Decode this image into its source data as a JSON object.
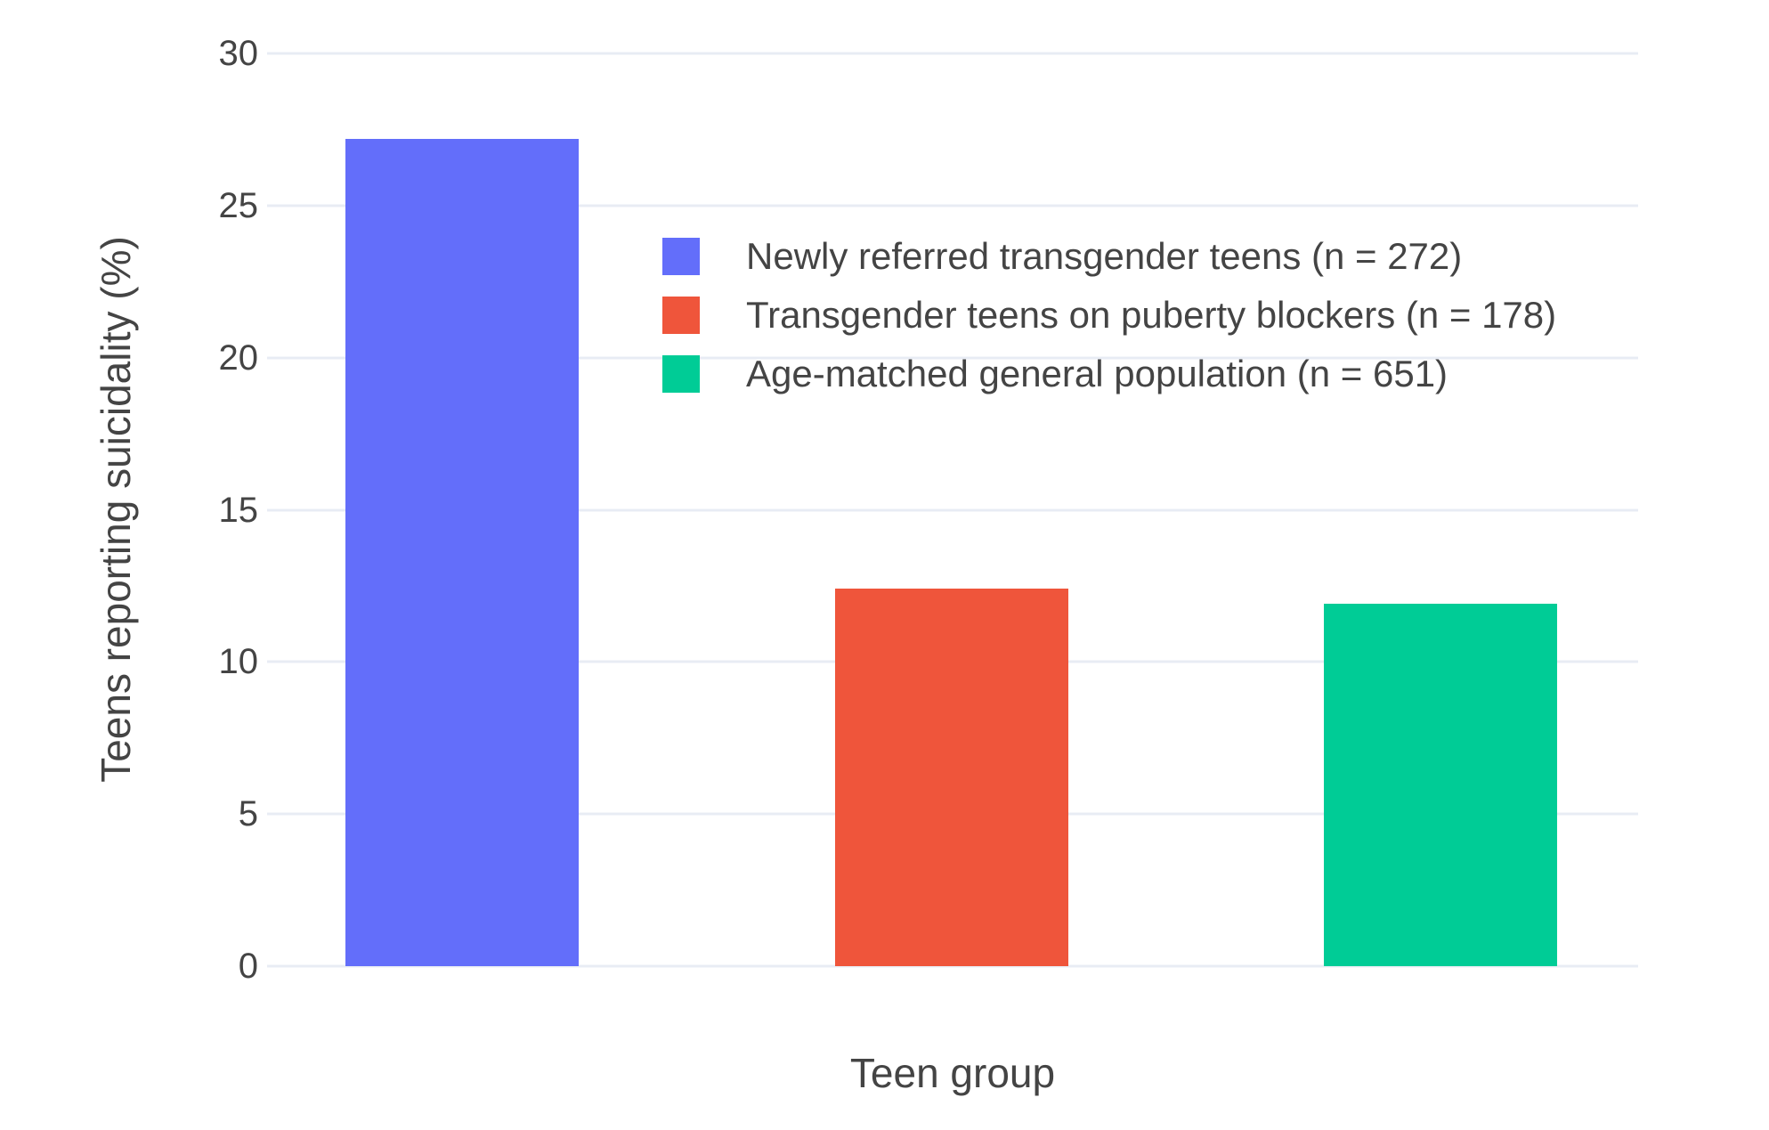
{
  "chart_data": {
    "type": "bar",
    "title": "",
    "xlabel": "Teen group",
    "ylabel": "Teens reporting suicidality (%)",
    "ylim": [
      0,
      30
    ],
    "yticks": [
      0,
      5,
      10,
      15,
      20,
      25,
      30
    ],
    "grid": true,
    "legend_position": "inside-upper-middle",
    "series": [
      {
        "name": "Newly referred transgender teens (n = 272)",
        "value": 27.2,
        "color": "#636EFA"
      },
      {
        "name": "Transgender teens on puberty blockers (n = 178)",
        "value": 12.4,
        "color": "#EF553B"
      },
      {
        "name": "Age-matched general population (n = 651)",
        "value": 11.9,
        "color": "#00CC96"
      }
    ]
  },
  "colors": {
    "background": "#FFFFFF",
    "grid": "#E8ECF4",
    "text": "#444444"
  }
}
